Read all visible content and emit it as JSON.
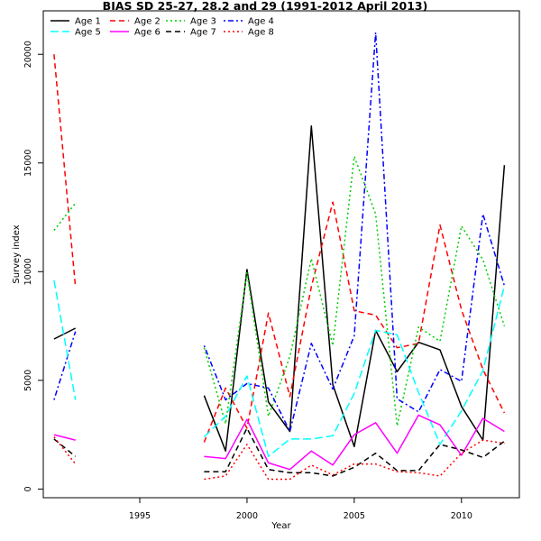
{
  "chart_data": {
    "type": "line",
    "title": "BIAS SD 25-27, 28.2 and 29 (1991-2012 April 2013)",
    "xlabel": "Year",
    "ylabel": "Survey index",
    "xlim": [
      1990.5,
      2012.7
    ],
    "ylim": [
      -400,
      22000
    ],
    "xticks": [
      1995,
      2000,
      2005,
      2010
    ],
    "yticks": [
      0,
      5000,
      10000,
      15000,
      20000
    ],
    "legend": "top-left",
    "x": [
      1991,
      1992,
      1993,
      1994,
      1995,
      1996,
      1997,
      1998,
      1999,
      2000,
      2001,
      2002,
      2003,
      2004,
      2005,
      2006,
      2007,
      2008,
      2009,
      2010,
      2011,
      2012
    ],
    "series": [
      {
        "name": "Age 1",
        "color": "#000000",
        "dash": "solid",
        "values": [
          6900,
          7400,
          null,
          null,
          null,
          null,
          null,
          4300,
          1750,
          10100,
          4000,
          2650,
          16700,
          4800,
          1950,
          7300,
          5400,
          6750,
          6400,
          3800,
          2250,
          14900
        ]
      },
      {
        "name": "Age 2",
        "color": "#ff0000",
        "dash": "dashed",
        "values": [
          20000,
          9300,
          null,
          null,
          null,
          null,
          null,
          2150,
          4650,
          2800,
          8100,
          4250,
          9300,
          13200,
          8200,
          8000,
          6500,
          6700,
          12150,
          8250,
          5500,
          3500
        ]
      },
      {
        "name": "Age 3",
        "color": "#00cd00",
        "dash": "dotted",
        "values": [
          11900,
          13150,
          null,
          null,
          null,
          null,
          null,
          6500,
          3000,
          9950,
          3350,
          6100,
          10600,
          6600,
          15300,
          12650,
          2900,
          7450,
          6800,
          12100,
          10550,
          7500
        ]
      },
      {
        "name": "Age 4",
        "color": "#0000ff",
        "dash": "dotdash",
        "values": [
          4100,
          7250,
          null,
          null,
          null,
          null,
          null,
          6600,
          4100,
          4850,
          4650,
          2650,
          6700,
          4600,
          7050,
          21000,
          4150,
          3550,
          5500,
          4950,
          12650,
          9350
        ]
      },
      {
        "name": "Age 5",
        "color": "#00ffff",
        "dash": "longdash",
        "values": [
          9600,
          4100,
          null,
          null,
          null,
          null,
          null,
          2400,
          3350,
          5200,
          1500,
          2300,
          2300,
          2450,
          4400,
          7300,
          7100,
          4450,
          2050,
          3600,
          5450,
          9350
        ]
      },
      {
        "name": "Age 6",
        "color": "#ff00ff",
        "dash": "solid",
        "values": [
          2500,
          2250,
          null,
          null,
          null,
          null,
          null,
          1500,
          1400,
          3200,
          1200,
          900,
          1750,
          1100,
          2500,
          3050,
          1650,
          3400,
          2950,
          1550,
          3250,
          2650
        ]
      },
      {
        "name": "Age 7",
        "color": "#000000",
        "dash": "dashed",
        "values": [
          2300,
          1500,
          null,
          null,
          null,
          null,
          null,
          800,
          800,
          2800,
          900,
          750,
          750,
          600,
          1000,
          1650,
          850,
          850,
          2050,
          1800,
          1450,
          2200
        ]
      },
      {
        "name": "Age 8",
        "color": "#ff0000",
        "dash": "dotted",
        "values": [
          2400,
          1150,
          null,
          null,
          null,
          null,
          null,
          450,
          600,
          2050,
          450,
          450,
          1100,
          650,
          1150,
          1150,
          800,
          750,
          600,
          1650,
          2250,
          2100
        ]
      }
    ]
  }
}
